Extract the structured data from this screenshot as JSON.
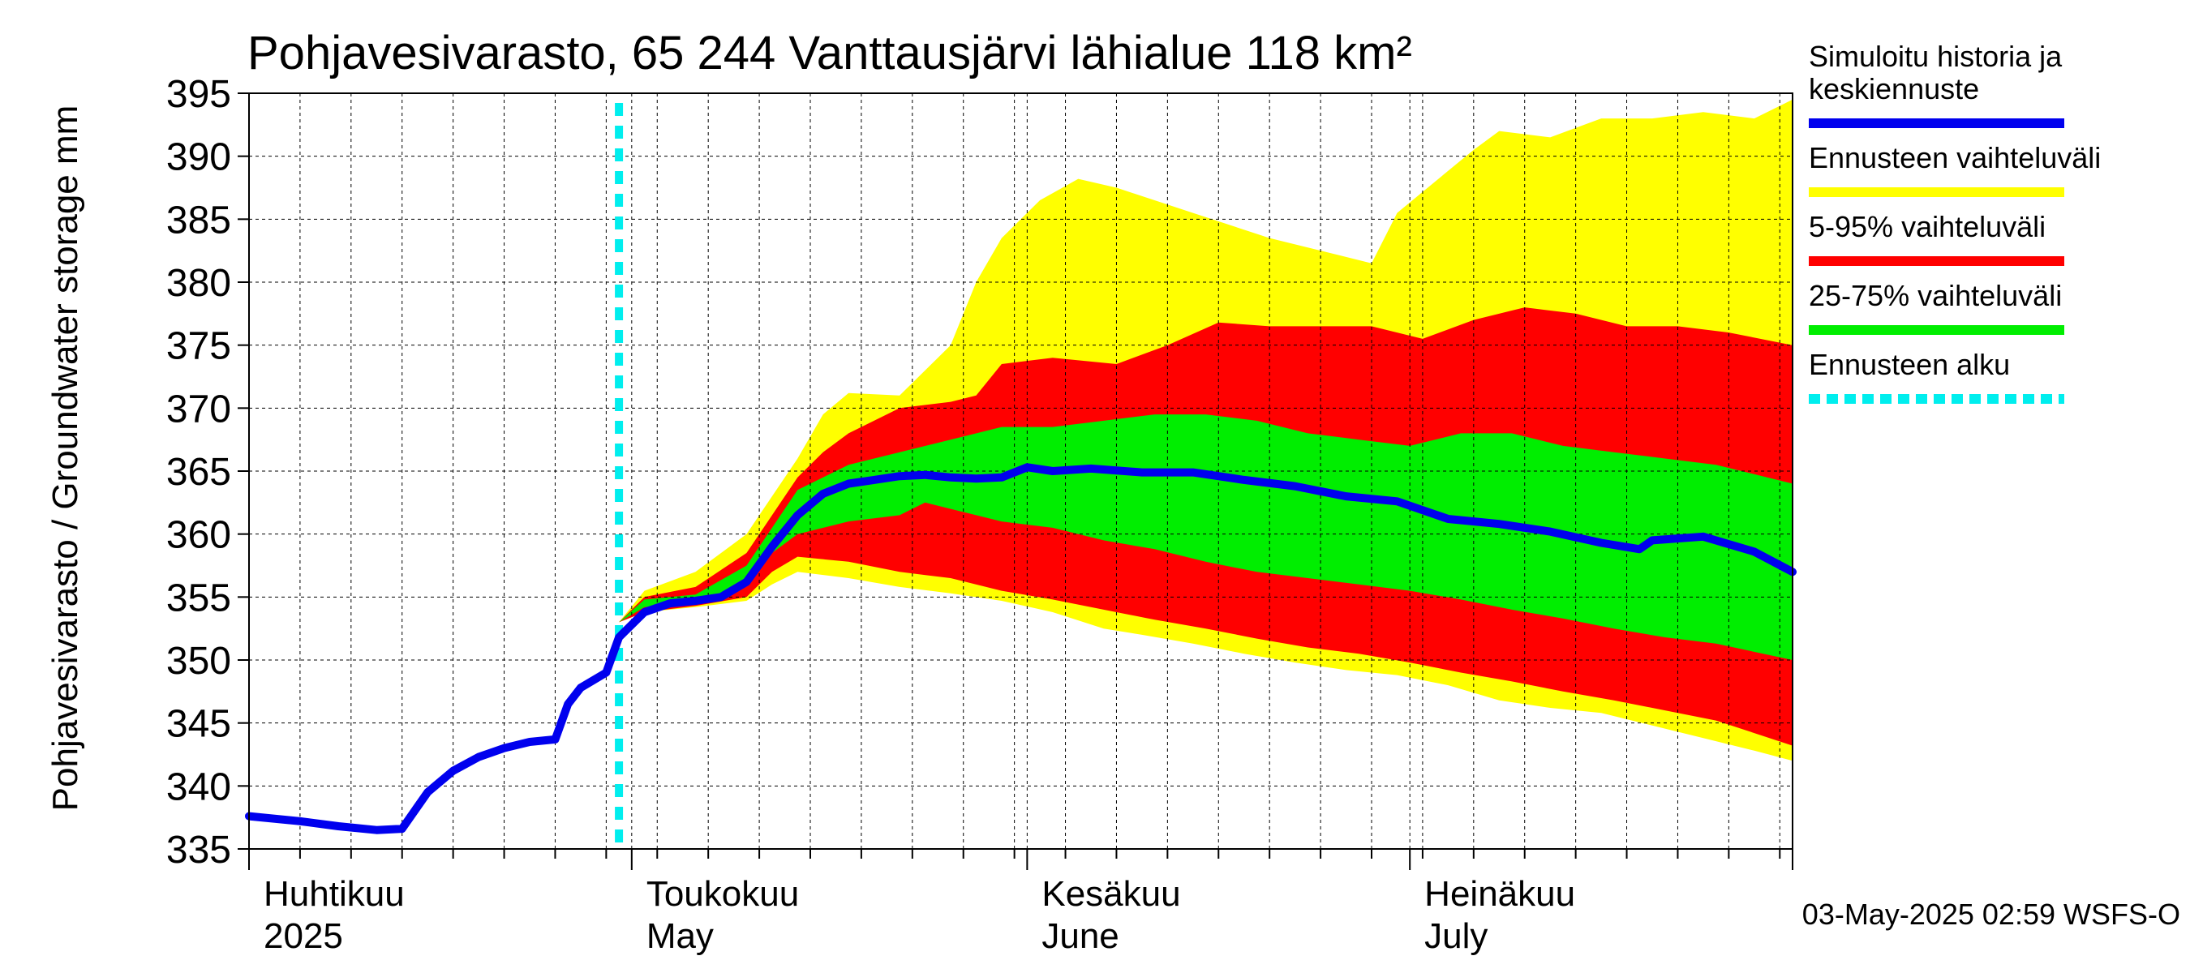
{
  "chart_data": {
    "type": "area",
    "title": "Pohjavesivarasto, 65 244 Vanttausjärvi lähialue 118 km²",
    "ylabel": "Pohjavesivarasto / Groundwater storage   mm",
    "ylim": [
      335,
      395
    ],
    "yticks": [
      335,
      340,
      345,
      350,
      355,
      360,
      365,
      370,
      375,
      380,
      385,
      390,
      395
    ],
    "xlim": [
      "2025-04-01",
      "2025-07-31"
    ],
    "month_labels": [
      {
        "date": "2025-04-01",
        "fi": "Huhtikuu",
        "en": "2025"
      },
      {
        "date": "2025-05-01",
        "fi": "Toukokuu",
        "en": "May"
      },
      {
        "date": "2025-06-01",
        "fi": "Kesäkuu",
        "en": "June"
      },
      {
        "date": "2025-07-01",
        "fi": "Heinäkuu",
        "en": "July"
      }
    ],
    "forecast_start": "2025-04-30",
    "grid": true,
    "legend_position": "right",
    "timestamp": "03-May-2025 02:59 WSFS-O",
    "series": [
      {
        "name": "Simuloitu historia ja keskiennuste",
        "kind": "line",
        "color": "#0000ee",
        "points": [
          [
            "2025-04-01",
            337.6
          ],
          [
            "2025-04-05",
            337.2
          ],
          [
            "2025-04-08",
            336.8
          ],
          [
            "2025-04-11",
            336.5
          ],
          [
            "2025-04-13",
            336.6
          ],
          [
            "2025-04-15",
            339.5
          ],
          [
            "2025-04-17",
            341.2
          ],
          [
            "2025-04-19",
            342.3
          ],
          [
            "2025-04-21",
            343.0
          ],
          [
            "2025-04-23",
            343.5
          ],
          [
            "2025-04-25",
            343.7
          ],
          [
            "2025-04-26",
            346.5
          ],
          [
            "2025-04-27",
            347.8
          ],
          [
            "2025-04-29",
            349.0
          ],
          [
            "2025-04-30",
            351.8
          ],
          [
            "2025-05-02",
            353.8
          ],
          [
            "2025-05-04",
            354.5
          ],
          [
            "2025-05-06",
            354.7
          ],
          [
            "2025-05-08",
            355.0
          ],
          [
            "2025-05-10",
            356.2
          ],
          [
            "2025-05-12",
            359.0
          ],
          [
            "2025-05-14",
            361.5
          ],
          [
            "2025-05-16",
            363.2
          ],
          [
            "2025-05-18",
            364.0
          ],
          [
            "2025-05-20",
            364.3
          ],
          [
            "2025-05-22",
            364.6
          ],
          [
            "2025-05-24",
            364.7
          ],
          [
            "2025-05-26",
            364.5
          ],
          [
            "2025-05-28",
            364.4
          ],
          [
            "2025-05-30",
            364.5
          ],
          [
            "2025-06-01",
            365.3
          ],
          [
            "2025-06-03",
            365.0
          ],
          [
            "2025-06-06",
            365.2
          ],
          [
            "2025-06-10",
            364.9
          ],
          [
            "2025-06-14",
            364.9
          ],
          [
            "2025-06-18",
            364.3
          ],
          [
            "2025-06-22",
            363.8
          ],
          [
            "2025-06-26",
            363.0
          ],
          [
            "2025-06-30",
            362.6
          ],
          [
            "2025-07-02",
            361.9
          ],
          [
            "2025-07-04",
            361.2
          ],
          [
            "2025-07-08",
            360.8
          ],
          [
            "2025-07-12",
            360.2
          ],
          [
            "2025-07-16",
            359.3
          ],
          [
            "2025-07-19",
            358.8
          ],
          [
            "2025-07-20",
            359.5
          ],
          [
            "2025-07-24",
            359.8
          ],
          [
            "2025-07-28",
            358.6
          ],
          [
            "2025-07-31",
            357.0
          ]
        ]
      },
      {
        "name": "Ennusteen vaihteluväli",
        "kind": "band",
        "color": "#ffff00",
        "upper": [
          [
            "2025-04-30",
            353.0
          ],
          [
            "2025-05-02",
            355.5
          ],
          [
            "2025-05-06",
            357.0
          ],
          [
            "2025-05-10",
            360.0
          ],
          [
            "2025-05-14",
            366.0
          ],
          [
            "2025-05-16",
            369.5
          ],
          [
            "2025-05-18",
            371.2
          ],
          [
            "2025-05-22",
            371.0
          ],
          [
            "2025-05-26",
            375.0
          ],
          [
            "2025-05-28",
            380.0
          ],
          [
            "2025-05-30",
            383.5
          ],
          [
            "2025-06-02",
            386.5
          ],
          [
            "2025-06-05",
            388.2
          ],
          [
            "2025-06-08",
            387.5
          ],
          [
            "2025-06-14",
            385.5
          ],
          [
            "2025-06-20",
            383.5
          ],
          [
            "2025-06-26",
            382.0
          ],
          [
            "2025-06-28",
            381.5
          ],
          [
            "2025-06-30",
            385.5
          ],
          [
            "2025-07-03",
            388.0
          ],
          [
            "2025-07-06",
            390.5
          ],
          [
            "2025-07-08",
            392.0
          ],
          [
            "2025-07-12",
            391.5
          ],
          [
            "2025-07-16",
            393.0
          ],
          [
            "2025-07-20",
            393.0
          ],
          [
            "2025-07-24",
            393.5
          ],
          [
            "2025-07-28",
            393.0
          ],
          [
            "2025-07-31",
            394.5
          ]
        ],
        "lower": [
          [
            "2025-04-30",
            353.0
          ],
          [
            "2025-05-02",
            353.8
          ],
          [
            "2025-05-06",
            354.2
          ],
          [
            "2025-05-10",
            354.7
          ],
          [
            "2025-05-12",
            356.0
          ],
          [
            "2025-05-14",
            357.0
          ],
          [
            "2025-05-18",
            356.5
          ],
          [
            "2025-05-22",
            355.8
          ],
          [
            "2025-05-26",
            355.3
          ],
          [
            "2025-05-30",
            354.7
          ],
          [
            "2025-06-03",
            353.8
          ],
          [
            "2025-06-07",
            352.5
          ],
          [
            "2025-06-10",
            352.0
          ],
          [
            "2025-06-14",
            351.3
          ],
          [
            "2025-06-18",
            350.5
          ],
          [
            "2025-06-22",
            349.8
          ],
          [
            "2025-06-26",
            349.2
          ],
          [
            "2025-06-30",
            348.8
          ],
          [
            "2025-07-04",
            348.0
          ],
          [
            "2025-07-08",
            346.8
          ],
          [
            "2025-07-12",
            346.2
          ],
          [
            "2025-07-16",
            345.8
          ],
          [
            "2025-07-20",
            344.8
          ],
          [
            "2025-07-24",
            343.8
          ],
          [
            "2025-07-28",
            342.8
          ],
          [
            "2025-07-31",
            342.0
          ]
        ]
      },
      {
        "name": "5-95% vaihteluväli",
        "kind": "band",
        "color": "#ff0000",
        "upper": [
          [
            "2025-04-30",
            353.0
          ],
          [
            "2025-05-02",
            355.0
          ],
          [
            "2025-05-06",
            355.8
          ],
          [
            "2025-05-10",
            358.5
          ],
          [
            "2025-05-14",
            364.5
          ],
          [
            "2025-05-16",
            366.5
          ],
          [
            "2025-05-18",
            368.0
          ],
          [
            "2025-05-22",
            370.0
          ],
          [
            "2025-05-26",
            370.5
          ],
          [
            "2025-05-28",
            371.0
          ],
          [
            "2025-05-30",
            373.5
          ],
          [
            "2025-06-03",
            374.0
          ],
          [
            "2025-06-08",
            373.5
          ],
          [
            "2025-06-12",
            375.0
          ],
          [
            "2025-06-16",
            376.8
          ],
          [
            "2025-06-20",
            376.5
          ],
          [
            "2025-06-24",
            376.5
          ],
          [
            "2025-06-28",
            376.5
          ],
          [
            "2025-07-02",
            375.5
          ],
          [
            "2025-07-06",
            377.0
          ],
          [
            "2025-07-10",
            378.0
          ],
          [
            "2025-07-14",
            377.5
          ],
          [
            "2025-07-18",
            376.5
          ],
          [
            "2025-07-22",
            376.5
          ],
          [
            "2025-07-26",
            376.0
          ],
          [
            "2025-07-31",
            375.0
          ]
        ],
        "lower": [
          [
            "2025-04-30",
            353.0
          ],
          [
            "2025-05-02",
            353.8
          ],
          [
            "2025-05-06",
            354.3
          ],
          [
            "2025-05-10",
            355.0
          ],
          [
            "2025-05-12",
            357.0
          ],
          [
            "2025-05-14",
            358.2
          ],
          [
            "2025-05-18",
            357.8
          ],
          [
            "2025-05-22",
            357.0
          ],
          [
            "2025-05-26",
            356.5
          ],
          [
            "2025-05-30",
            355.5
          ],
          [
            "2025-06-03",
            354.8
          ],
          [
            "2025-06-07",
            354.0
          ],
          [
            "2025-06-11",
            353.2
          ],
          [
            "2025-06-15",
            352.5
          ],
          [
            "2025-06-19",
            351.7
          ],
          [
            "2025-06-23",
            351.0
          ],
          [
            "2025-06-27",
            350.5
          ],
          [
            "2025-07-01",
            349.8
          ],
          [
            "2025-07-05",
            349.0
          ],
          [
            "2025-07-09",
            348.3
          ],
          [
            "2025-07-13",
            347.5
          ],
          [
            "2025-07-17",
            346.8
          ],
          [
            "2025-07-21",
            346.0
          ],
          [
            "2025-07-25",
            345.2
          ],
          [
            "2025-07-31",
            343.2
          ]
        ]
      },
      {
        "name": "25-75% vaihteluväli",
        "kind": "band",
        "color": "#00ee00",
        "upper": [
          [
            "2025-04-30",
            353.0
          ],
          [
            "2025-05-02",
            354.8
          ],
          [
            "2025-05-06",
            355.2
          ],
          [
            "2025-05-10",
            357.5
          ],
          [
            "2025-05-14",
            363.5
          ],
          [
            "2025-05-18",
            365.5
          ],
          [
            "2025-05-22",
            366.5
          ],
          [
            "2025-05-26",
            367.5
          ],
          [
            "2025-05-30",
            368.5
          ],
          [
            "2025-06-03",
            368.5
          ],
          [
            "2025-06-07",
            369.0
          ],
          [
            "2025-06-11",
            369.5
          ],
          [
            "2025-06-15",
            369.5
          ],
          [
            "2025-06-19",
            369.0
          ],
          [
            "2025-06-23",
            368.0
          ],
          [
            "2025-06-27",
            367.5
          ],
          [
            "2025-07-01",
            367.0
          ],
          [
            "2025-07-05",
            368.0
          ],
          [
            "2025-07-09",
            368.0
          ],
          [
            "2025-07-13",
            367.0
          ],
          [
            "2025-07-17",
            366.5
          ],
          [
            "2025-07-21",
            366.0
          ],
          [
            "2025-07-25",
            365.5
          ],
          [
            "2025-07-31",
            364.0
          ]
        ],
        "lower": [
          [
            "2025-04-30",
            353.0
          ],
          [
            "2025-05-02",
            354.2
          ],
          [
            "2025-05-06",
            354.6
          ],
          [
            "2025-05-10",
            356.0
          ],
          [
            "2025-05-12",
            358.5
          ],
          [
            "2025-05-14",
            360.0
          ],
          [
            "2025-05-18",
            361.0
          ],
          [
            "2025-05-22",
            361.5
          ],
          [
            "2025-05-24",
            362.5
          ],
          [
            "2025-05-26",
            362.0
          ],
          [
            "2025-05-30",
            361.0
          ],
          [
            "2025-06-03",
            360.5
          ],
          [
            "2025-06-07",
            359.5
          ],
          [
            "2025-06-11",
            358.8
          ],
          [
            "2025-06-15",
            357.8
          ],
          [
            "2025-06-19",
            357.0
          ],
          [
            "2025-06-23",
            356.5
          ],
          [
            "2025-06-27",
            356.0
          ],
          [
            "2025-07-01",
            355.5
          ],
          [
            "2025-07-05",
            354.8
          ],
          [
            "2025-07-09",
            354.0
          ],
          [
            "2025-07-13",
            353.3
          ],
          [
            "2025-07-17",
            352.5
          ],
          [
            "2025-07-21",
            351.8
          ],
          [
            "2025-07-25",
            351.3
          ],
          [
            "2025-07-31",
            350.0
          ]
        ]
      }
    ],
    "legend": [
      {
        "label": "Simuloitu historia ja\nkeskiennuste",
        "color": "#0000ee",
        "style": "solid"
      },
      {
        "label": "Ennusteen vaihteluväli",
        "color": "#ffff00",
        "style": "solid"
      },
      {
        "label": "5-95% vaihteluväli",
        "color": "#ff0000",
        "style": "solid"
      },
      {
        "label": "25-75% vaihteluväli",
        "color": "#00ee00",
        "style": "solid"
      },
      {
        "label": "Ennusteen alku",
        "color": "#00eeee",
        "style": "dashed"
      }
    ]
  }
}
